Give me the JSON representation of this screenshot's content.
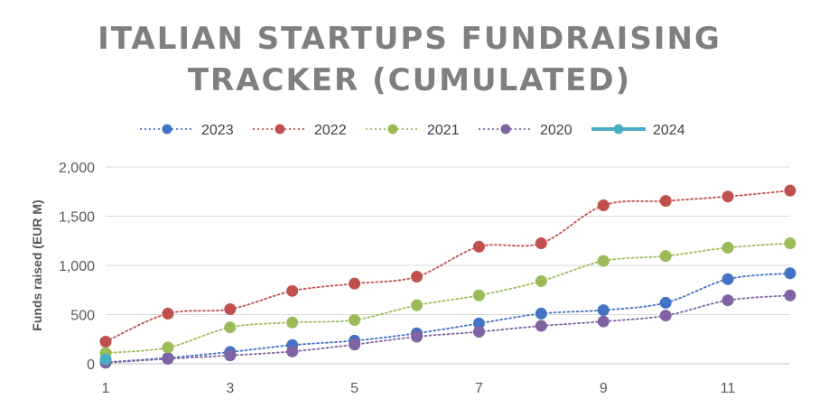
{
  "chart_data": {
    "type": "line",
    "title_lines": [
      "ITALIAN STARTUPS FUNDRAISING",
      "TRACKER (CUMULATED)"
    ],
    "ylabel": "Funds raised (EUR M)",
    "xlabel": "",
    "xlim": [
      1,
      12
    ],
    "ylim": [
      0,
      2000
    ],
    "xticks": [
      1,
      3,
      5,
      7,
      9,
      11
    ],
    "yticks": [
      0,
      500,
      1000,
      1500,
      2000
    ],
    "ytick_labels": [
      "0",
      "500",
      "1,000",
      "1,500",
      "2,000"
    ],
    "grid": "horizontal",
    "legend_position": "top",
    "series": [
      {
        "name": "2023",
        "color": "#4472C4",
        "style": "dotted",
        "x": [
          1,
          2,
          3,
          4,
          5,
          6,
          7,
          8,
          9,
          10,
          11,
          12
        ],
        "values": [
          15,
          60,
          120,
          190,
          235,
          310,
          410,
          510,
          545,
          620,
          860,
          920
        ]
      },
      {
        "name": "2022",
        "color": "#C0504D",
        "style": "dotted",
        "x": [
          1,
          2,
          3,
          4,
          5,
          6,
          7,
          8,
          9,
          10,
          11,
          12
        ],
        "values": [
          225,
          510,
          555,
          740,
          815,
          885,
          1190,
          1225,
          1610,
          1655,
          1700,
          1760
        ]
      },
      {
        "name": "2021",
        "color": "#9BBB59",
        "style": "dotted",
        "x": [
          1,
          2,
          3,
          4,
          5,
          6,
          7,
          8,
          9,
          10,
          11,
          12
        ],
        "values": [
          110,
          165,
          370,
          420,
          445,
          595,
          695,
          840,
          1045,
          1095,
          1180,
          1225
        ]
      },
      {
        "name": "2020",
        "color": "#8064A2",
        "style": "dotted",
        "x": [
          1,
          2,
          3,
          4,
          5,
          6,
          7,
          8,
          9,
          10,
          11,
          12
        ],
        "values": [
          10,
          50,
          85,
          125,
          195,
          275,
          325,
          385,
          430,
          490,
          645,
          695
        ]
      },
      {
        "name": "2024",
        "color": "#4BACC6",
        "style": "solid",
        "x": [
          1
        ],
        "values": [
          45
        ]
      }
    ]
  }
}
